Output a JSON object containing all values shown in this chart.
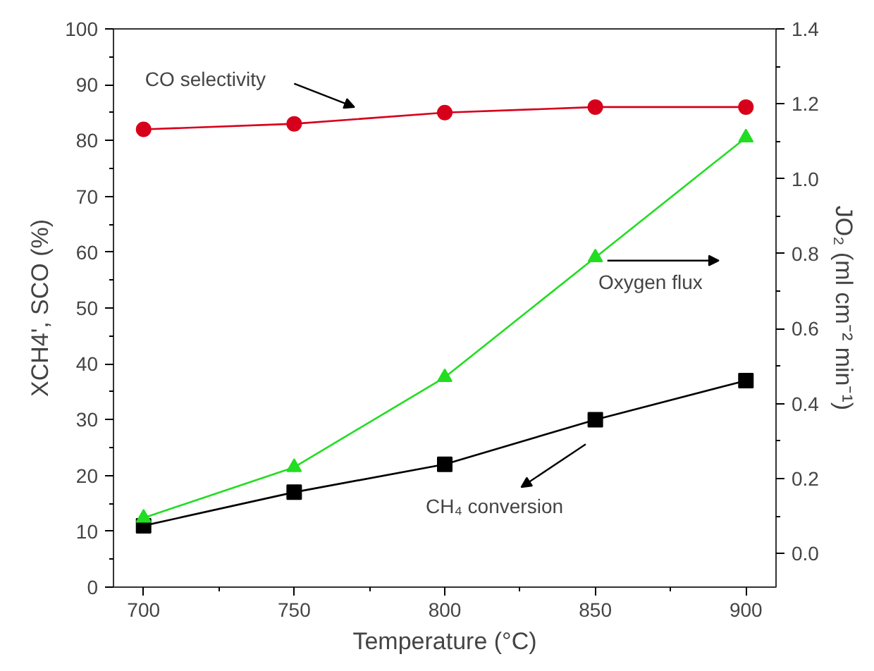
{
  "chart_data": {
    "type": "line",
    "xlabel": "Temperature (°C)",
    "ylabel": "XCH4', SCO (%)",
    "y2label": "JO₂ (ml cm⁻² min⁻¹)",
    "x": [
      700,
      750,
      800,
      850,
      900
    ],
    "series": [
      {
        "color": "#d7001b",
        "values": [
          82,
          83,
          85,
          86,
          86
        ],
        "marker": "circle"
      },
      {
        "color": "#000000",
        "values": [
          11,
          17,
          22,
          30,
          37
        ],
        "marker": "square"
      },
      {
        "color": "#22dd22",
        "values": [
          0.095,
          0.23,
          0.47,
          0.79,
          1.11
        ],
        "marker": "triangle",
        "axis": "y2"
      }
    ],
    "xlim": [
      690,
      910
    ],
    "xticks": [
      700,
      750,
      800,
      850,
      900
    ],
    "ylim": [
      0,
      100
    ],
    "yticks": [
      0,
      10,
      20,
      30,
      40,
      50,
      60,
      70,
      80,
      90,
      100
    ],
    "y2lim": [
      -0.09,
      1.4
    ],
    "y2ticks": [
      {
        "value": 0,
        "label": "0.0"
      },
      {
        "value": 0.2,
        "label": "0.2"
      },
      {
        "value": 0.4,
        "label": "0.4"
      },
      {
        "value": 0.6,
        "label": "0.6"
      },
      {
        "value": 0.8,
        "label": "0.8"
      },
      {
        "value": 1.0,
        "label": "1.0"
      },
      {
        "value": 1.2,
        "label": "1.2"
      },
      {
        "value": 1.4,
        "label": "1.4"
      }
    ],
    "annotations": [
      "CO selectivity",
      "Oxygen flux",
      "CH₄ conversion"
    ],
    "grid": false
  }
}
